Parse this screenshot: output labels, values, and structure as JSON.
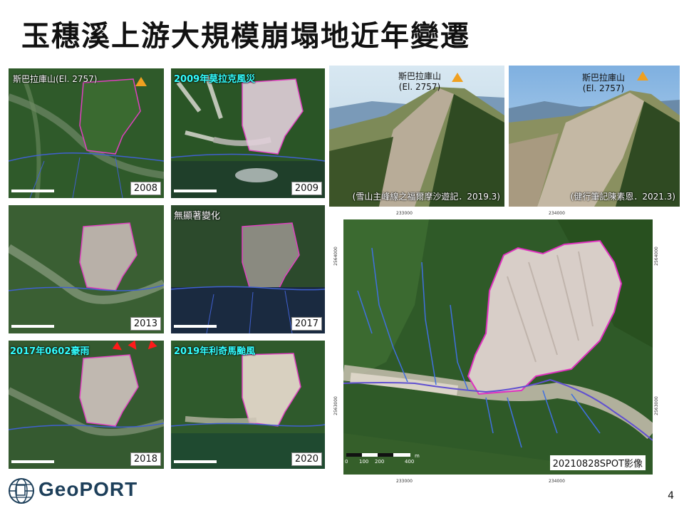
{
  "slide": {
    "title": "玉穗溪上游大規模崩塌地近年變遷",
    "page_number": "4"
  },
  "maps": [
    {
      "year": "2008",
      "caption": "斯巴拉庫山(El. 2757)",
      "caption_style": "white"
    },
    {
      "year": "2009",
      "caption": "2009年莫拉克風災",
      "caption_style": "cyan"
    },
    {
      "year": "2013",
      "caption": "",
      "caption_style": "white"
    },
    {
      "year": "2017",
      "caption": "無顯著變化",
      "caption_style": "white"
    },
    {
      "year": "2018",
      "caption": "2017年0602豪雨",
      "caption_style": "cyan"
    },
    {
      "year": "2020",
      "caption": "2019年利奇馬颱風",
      "caption_style": "cyan"
    }
  ],
  "photos": [
    {
      "peak_name": "斯巴拉庫山",
      "elevation": "(El. 2757)",
      "credit": "(雪山主峰線之福爾摩沙遊記．2019.3)"
    },
    {
      "peak_name": "斯巴拉庫山",
      "elevation": "(El. 2757)",
      "credit": "(健行筆記陳素恩．2021.3)"
    }
  ],
  "spot_image": {
    "label": "20210828SPOT影像",
    "scale_ticks": [
      "0",
      "100",
      "200",
      "400"
    ],
    "scale_unit": "m",
    "grid_top": [
      "233000",
      "234000"
    ],
    "grid_bottom": [
      "233000",
      "234000"
    ],
    "grid_left": [
      "2564000",
      "2563000"
    ],
    "grid_right": [
      "2564000",
      "2563000"
    ]
  },
  "logo": {
    "text": "GeoPORT",
    "icon": "geoport-globe-icon"
  },
  "colors": {
    "boundary": "#e040c0",
    "stream": "#4060d0",
    "marker": "#f0a020"
  }
}
